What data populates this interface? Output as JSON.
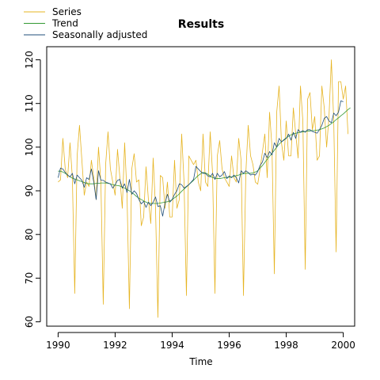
{
  "chart_data": {
    "type": "line",
    "title": "Results",
    "xlabel": "Time",
    "ylabel": "",
    "xlim": [
      1989.6,
      2000.4
    ],
    "ylim": [
      59,
      123
    ],
    "x_ticks": [
      1990,
      1992,
      1994,
      1996,
      1998,
      2000
    ],
    "x_tick_labels": [
      "1990",
      "1992",
      "1994",
      "1996",
      "1998",
      "2000"
    ],
    "y_ticks": [
      60,
      70,
      80,
      90,
      100,
      110,
      120
    ],
    "y_tick_labels": [
      "60",
      "70",
      "80",
      "90",
      "100",
      "110",
      "120"
    ],
    "grid": false,
    "legend_position": "top-left",
    "x_start": 1990,
    "x_step": 0.08333,
    "series": [
      {
        "name": "Series",
        "color": "#e6b422",
        "values": [
          92,
          92.5,
          102,
          95,
          93,
          101,
          93,
          66.5,
          98,
          105,
          97,
          89,
          92,
          91,
          97,
          93,
          88,
          100,
          92,
          64,
          96,
          103.5,
          95,
          92,
          89,
          99.5,
          93,
          86,
          101,
          89,
          63,
          95,
          98.5,
          92,
          92.5,
          82,
          84,
          95.5,
          88,
          82.5,
          97.5,
          86,
          61,
          93.5,
          93,
          86,
          92,
          84,
          84,
          97,
          86,
          88,
          103,
          92,
          66,
          98,
          97,
          96,
          97,
          92,
          90,
          103,
          92,
          91,
          103.5,
          94,
          66.5,
          98,
          101.5,
          95,
          93,
          92,
          91,
          98,
          93,
          92,
          102,
          97,
          66,
          94,
          105,
          98,
          96,
          92,
          91.5,
          95,
          99,
          103,
          93,
          108,
          100,
          71,
          108,
          114,
          101,
          97,
          106,
          98,
          98,
          109,
          103,
          97.5,
          114,
          106,
          72,
          111,
          112.5,
          104,
          107,
          97,
          98,
          114,
          109,
          100,
          107,
          120,
          106,
          76,
          115,
          115,
          111,
          114,
          103
        ]
      },
      {
        "name": "Trend",
        "color": "#339933",
        "values": [
          94.5,
          94.5,
          94.3,
          94.0,
          93.6,
          93.2,
          92.9,
          92.7,
          92.5,
          92.3,
          92.1,
          91.9,
          91.7,
          91.6,
          91.6,
          91.6,
          91.7,
          91.7,
          91.8,
          91.8,
          91.8,
          91.7,
          91.6,
          91.4,
          91.3,
          91.2,
          91.1,
          90.9,
          90.6,
          90.3,
          90.0,
          89.6,
          89.2,
          88.7,
          88.3,
          88.0,
          87.7,
          87.4,
          87.2,
          87.1,
          87.1,
          87.1,
          87.1,
          87.2,
          87.3,
          87.4,
          87.5,
          87.7,
          88.0,
          88.4,
          88.8,
          89.3,
          89.9,
          90.4,
          90.9,
          91.4,
          91.9,
          92.4,
          93.0,
          93.5,
          93.9,
          94.2,
          94.1,
          93.8,
          93.4,
          93.0,
          92.9,
          92.8,
          92.8,
          92.9,
          93.0,
          93.1,
          93.1,
          93.2,
          93.3,
          93.5,
          93.6,
          93.8,
          93.9,
          94.0,
          94.0,
          94.0,
          94.1,
          94.3,
          94.6,
          95.2,
          95.8,
          96.5,
          97.2,
          97.9,
          98.6,
          99.3,
          100.0,
          100.7,
          101.2,
          101.7,
          102.1,
          102.5,
          102.8,
          103.0,
          103.2,
          103.3,
          103.4,
          103.5,
          103.6,
          103.7,
          103.7,
          103.8,
          103.8,
          103.9,
          104.0,
          104.2,
          104.4,
          104.7,
          105.0,
          105.4,
          105.8,
          106.3,
          106.7,
          107.2,
          107.6,
          108.1,
          108.6,
          109.0
        ]
      },
      {
        "name": "Seasonally adjusted",
        "color": "#1f4e79",
        "values": [
          93,
          95.2,
          95,
          94.2,
          93.6,
          93.2,
          94,
          91.6,
          93.6,
          93,
          92.4,
          90.8,
          93,
          92.6,
          95,
          92,
          88,
          94.6,
          92.4,
          92.4,
          92,
          91.8,
          91.6,
          90.6,
          91.4,
          92.4,
          92.6,
          90.6,
          91.6,
          89.6,
          92.6,
          89.2,
          90,
          89.4,
          88,
          87,
          87.6,
          86.2,
          87.4,
          86.6,
          87.4,
          88.6,
          86.4,
          86.6,
          84.2,
          87.2,
          89.2,
          87.4,
          88,
          89.2,
          90,
          91.6,
          91.4,
          90.6,
          91,
          91.4,
          92,
          92.6,
          95.6,
          95,
          94.4,
          94,
          94,
          93.4,
          93.2,
          94,
          92.6,
          94,
          93.2,
          93.6,
          94.4,
          92.8,
          93.4,
          93,
          93.6,
          93,
          91.8,
          94.6,
          94,
          94.6,
          94.2,
          93.6,
          93.8,
          93.6,
          94.4,
          95.8,
          96.6,
          98.6,
          97.6,
          99,
          98.2,
          101,
          100,
          102,
          101.2,
          101.6,
          102,
          103,
          101.6,
          103.4,
          102,
          104,
          103.4,
          103.8,
          103.4,
          104,
          104,
          103.6,
          103.4,
          103.2,
          104,
          105,
          106.6,
          107,
          106,
          105.6,
          107.8,
          107.2,
          108,
          110.6,
          110.4
        ]
      }
    ]
  }
}
